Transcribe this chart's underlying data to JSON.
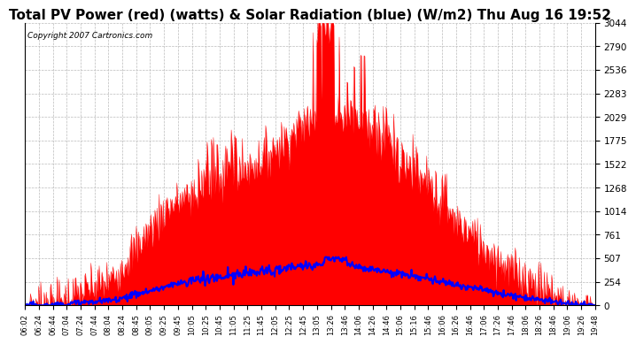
{
  "title": "Total PV Power (red) (watts) & Solar Radiation (blue) (W/m2) Thu Aug 16 19:52",
  "copyright": "Copyright 2007 Cartronics.com",
  "y_ticks": [
    0.0,
    253.6,
    507.3,
    760.9,
    1014.5,
    1268.2,
    1521.8,
    1775.4,
    2029.1,
    2282.7,
    2536.3,
    2789.9,
    3043.6
  ],
  "y_max": 3043.6,
  "x_labels": [
    "06:02",
    "06:24",
    "06:44",
    "07:04",
    "07:24",
    "07:44",
    "08:04",
    "08:24",
    "08:45",
    "09:05",
    "09:25",
    "09:45",
    "10:05",
    "10:25",
    "10:45",
    "11:05",
    "11:25",
    "11:45",
    "12:05",
    "12:25",
    "12:45",
    "13:05",
    "13:26",
    "13:46",
    "14:06",
    "14:26",
    "14:46",
    "15:06",
    "15:16",
    "15:46",
    "16:06",
    "16:26",
    "16:46",
    "17:06",
    "17:26",
    "17:46",
    "18:06",
    "18:26",
    "18:46",
    "19:06",
    "19:26",
    "19:48"
  ],
  "background_color": "#ffffff",
  "plot_bg_color": "#ffffff",
  "red_color": "#ff0000",
  "blue_color": "#0000ff",
  "grid_color": "#bbbbbb",
  "title_fontsize": 11,
  "tick_fontsize": 7.5
}
